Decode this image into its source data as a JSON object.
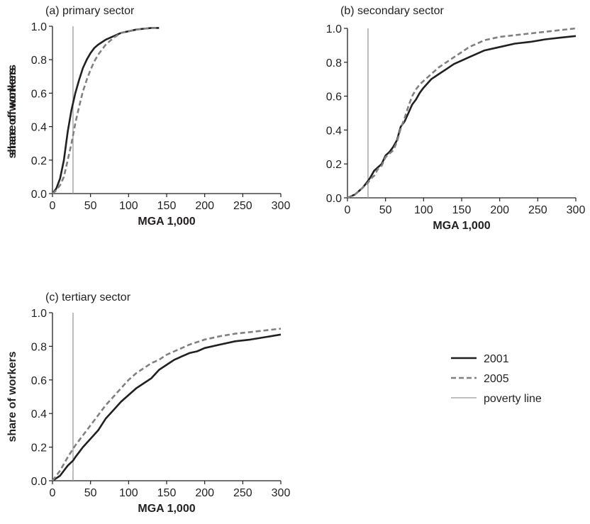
{
  "styles": {
    "s2001": {
      "color": "#231f20",
      "width": 2.6,
      "dash": ""
    },
    "s2005": {
      "color": "#808080",
      "width": 2.6,
      "dash": "7,4"
    },
    "poverty": {
      "color": "#999999",
      "width": 1.3,
      "dash": ""
    }
  },
  "legend": {
    "placement": "right",
    "items": [
      {
        "label": "2001",
        "style": "s2001"
      },
      {
        "label": "2005",
        "style": "s2005"
      },
      {
        "label": "poverty line",
        "style": "poverty"
      }
    ]
  },
  "chart_data": [
    {
      "type": "line",
      "title": "(a) primary sector",
      "xlabel": "MGA 1,000",
      "ylabel": "share of workers",
      "xlim": [
        0,
        300
      ],
      "ylim": [
        0,
        1.0
      ],
      "xticks": [
        0,
        50,
        100,
        150,
        200,
        250,
        300
      ],
      "yticks": [
        0.0,
        0.2,
        0.4,
        0.6,
        0.8,
        1.0
      ],
      "ytick_labels": [
        "0.0",
        "0.2",
        "0.4",
        "0.6",
        "0.8",
        "1.0"
      ],
      "grid": false,
      "poverty_line": 27,
      "series": [
        {
          "name": "2001",
          "style": "s2001",
          "points": [
            [
              0,
              0
            ],
            [
              5,
              0.03
            ],
            [
              10,
              0.09
            ],
            [
              15,
              0.2
            ],
            [
              20,
              0.37
            ],
            [
              25,
              0.5
            ],
            [
              30,
              0.6
            ],
            [
              35,
              0.68
            ],
            [
              40,
              0.75
            ],
            [
              45,
              0.8
            ],
            [
              50,
              0.84
            ],
            [
              55,
              0.87
            ],
            [
              60,
              0.89
            ],
            [
              70,
              0.92
            ],
            [
              80,
              0.94
            ],
            [
              90,
              0.96
            ],
            [
              100,
              0.97
            ],
            [
              110,
              0.98
            ],
            [
              120,
              0.985
            ],
            [
              130,
              0.99
            ],
            [
              140,
              0.99
            ]
          ]
        },
        {
          "name": "2005",
          "style": "s2005",
          "points": [
            [
              0,
              0
            ],
            [
              5,
              0.02
            ],
            [
              10,
              0.05
            ],
            [
              15,
              0.1
            ],
            [
              20,
              0.2
            ],
            [
              25,
              0.3
            ],
            [
              30,
              0.42
            ],
            [
              35,
              0.52
            ],
            [
              40,
              0.61
            ],
            [
              45,
              0.68
            ],
            [
              50,
              0.74
            ],
            [
              55,
              0.79
            ],
            [
              60,
              0.83
            ],
            [
              70,
              0.89
            ],
            [
              80,
              0.93
            ],
            [
              90,
              0.96
            ],
            [
              100,
              0.97
            ],
            [
              110,
              0.98
            ],
            [
              120,
              0.985
            ],
            [
              130,
              0.99
            ],
            [
              140,
              0.99
            ]
          ]
        }
      ]
    },
    {
      "type": "line",
      "title": "(b) secondary sector",
      "xlabel": "MGA 1,000",
      "ylabel": "share of workers",
      "xlim": [
        0,
        300
      ],
      "ylim": [
        0,
        1.0
      ],
      "xticks": [
        0,
        50,
        100,
        150,
        200,
        250,
        300
      ],
      "yticks": [
        0.0,
        0.2,
        0.4,
        0.6,
        0.8,
        1.0
      ],
      "ytick_labels": [
        "0.0",
        "0.2",
        "0.4",
        "0.6",
        "0.8",
        "1.0"
      ],
      "grid": false,
      "poverty_line": 27,
      "series": [
        {
          "name": "2001",
          "style": "s2001",
          "points": [
            [
              0,
              0
            ],
            [
              10,
              0.02
            ],
            [
              20,
              0.06
            ],
            [
              27,
              0.1
            ],
            [
              30,
              0.12
            ],
            [
              35,
              0.16
            ],
            [
              40,
              0.18
            ],
            [
              45,
              0.2
            ],
            [
              50,
              0.25
            ],
            [
              55,
              0.27
            ],
            [
              60,
              0.3
            ],
            [
              65,
              0.34
            ],
            [
              70,
              0.42
            ],
            [
              75,
              0.45
            ],
            [
              80,
              0.5
            ],
            [
              85,
              0.55
            ],
            [
              90,
              0.58
            ],
            [
              95,
              0.62
            ],
            [
              100,
              0.65
            ],
            [
              110,
              0.7
            ],
            [
              120,
              0.73
            ],
            [
              130,
              0.76
            ],
            [
              140,
              0.79
            ],
            [
              150,
              0.81
            ],
            [
              160,
              0.83
            ],
            [
              170,
              0.85
            ],
            [
              180,
              0.87
            ],
            [
              200,
              0.89
            ],
            [
              220,
              0.91
            ],
            [
              240,
              0.92
            ],
            [
              260,
              0.935
            ],
            [
              280,
              0.945
            ],
            [
              300,
              0.955
            ]
          ]
        },
        {
          "name": "2005",
          "style": "s2005",
          "points": [
            [
              0,
              0
            ],
            [
              10,
              0.02
            ],
            [
              20,
              0.06
            ],
            [
              27,
              0.09
            ],
            [
              30,
              0.11
            ],
            [
              35,
              0.13
            ],
            [
              40,
              0.17
            ],
            [
              45,
              0.19
            ],
            [
              50,
              0.24
            ],
            [
              55,
              0.26
            ],
            [
              60,
              0.28
            ],
            [
              65,
              0.33
            ],
            [
              70,
              0.41
            ],
            [
              75,
              0.47
            ],
            [
              80,
              0.54
            ],
            [
              85,
              0.6
            ],
            [
              90,
              0.64
            ],
            [
              95,
              0.67
            ],
            [
              100,
              0.69
            ],
            [
              110,
              0.73
            ],
            [
              120,
              0.77
            ],
            [
              130,
              0.8
            ],
            [
              140,
              0.83
            ],
            [
              150,
              0.86
            ],
            [
              160,
              0.89
            ],
            [
              170,
              0.91
            ],
            [
              180,
              0.93
            ],
            [
              200,
              0.95
            ],
            [
              220,
              0.96
            ],
            [
              240,
              0.97
            ],
            [
              260,
              0.98
            ],
            [
              280,
              0.99
            ],
            [
              300,
              1.0
            ]
          ]
        }
      ]
    },
    {
      "type": "line",
      "title": "(c) tertiary sector",
      "xlabel": "MGA 1,000",
      "ylabel": "share of workers",
      "xlim": [
        0,
        300
      ],
      "ylim": [
        0,
        1.0
      ],
      "xticks": [
        0,
        50,
        100,
        150,
        200,
        250,
        300
      ],
      "yticks": [
        0.0,
        0.2,
        0.4,
        0.6,
        0.8,
        1.0
      ],
      "ytick_labels": [
        "0.0",
        "0.2",
        "0.4",
        "0.6",
        "0.8",
        "1.0"
      ],
      "grid": false,
      "poverty_line": 27,
      "series": [
        {
          "name": "2001",
          "style": "s2001",
          "points": [
            [
              0,
              0
            ],
            [
              10,
              0.03
            ],
            [
              20,
              0.09
            ],
            [
              27,
              0.12
            ],
            [
              30,
              0.14
            ],
            [
              40,
              0.2
            ],
            [
              50,
              0.25
            ],
            [
              60,
              0.3
            ],
            [
              70,
              0.37
            ],
            [
              80,
              0.42
            ],
            [
              90,
              0.47
            ],
            [
              100,
              0.51
            ],
            [
              110,
              0.55
            ],
            [
              120,
              0.58
            ],
            [
              130,
              0.61
            ],
            [
              140,
              0.66
            ],
            [
              150,
              0.69
            ],
            [
              160,
              0.72
            ],
            [
              170,
              0.74
            ],
            [
              180,
              0.76
            ],
            [
              190,
              0.77
            ],
            [
              200,
              0.79
            ],
            [
              220,
              0.81
            ],
            [
              240,
              0.83
            ],
            [
              260,
              0.84
            ],
            [
              280,
              0.855
            ],
            [
              300,
              0.87
            ]
          ]
        },
        {
          "name": "2005",
          "style": "s2005",
          "points": [
            [
              0,
              0
            ],
            [
              10,
              0.06
            ],
            [
              20,
              0.14
            ],
            [
              27,
              0.19
            ],
            [
              30,
              0.21
            ],
            [
              40,
              0.27
            ],
            [
              50,
              0.33
            ],
            [
              60,
              0.39
            ],
            [
              70,
              0.45
            ],
            [
              80,
              0.5
            ],
            [
              90,
              0.55
            ],
            [
              100,
              0.6
            ],
            [
              110,
              0.64
            ],
            [
              120,
              0.67
            ],
            [
              130,
              0.7
            ],
            [
              140,
              0.72
            ],
            [
              150,
              0.75
            ],
            [
              160,
              0.77
            ],
            [
              170,
              0.79
            ],
            [
              180,
              0.81
            ],
            [
              190,
              0.825
            ],
            [
              200,
              0.84
            ],
            [
              220,
              0.86
            ],
            [
              240,
              0.875
            ],
            [
              260,
              0.885
            ],
            [
              280,
              0.895
            ],
            [
              300,
              0.905
            ]
          ]
        }
      ]
    }
  ]
}
